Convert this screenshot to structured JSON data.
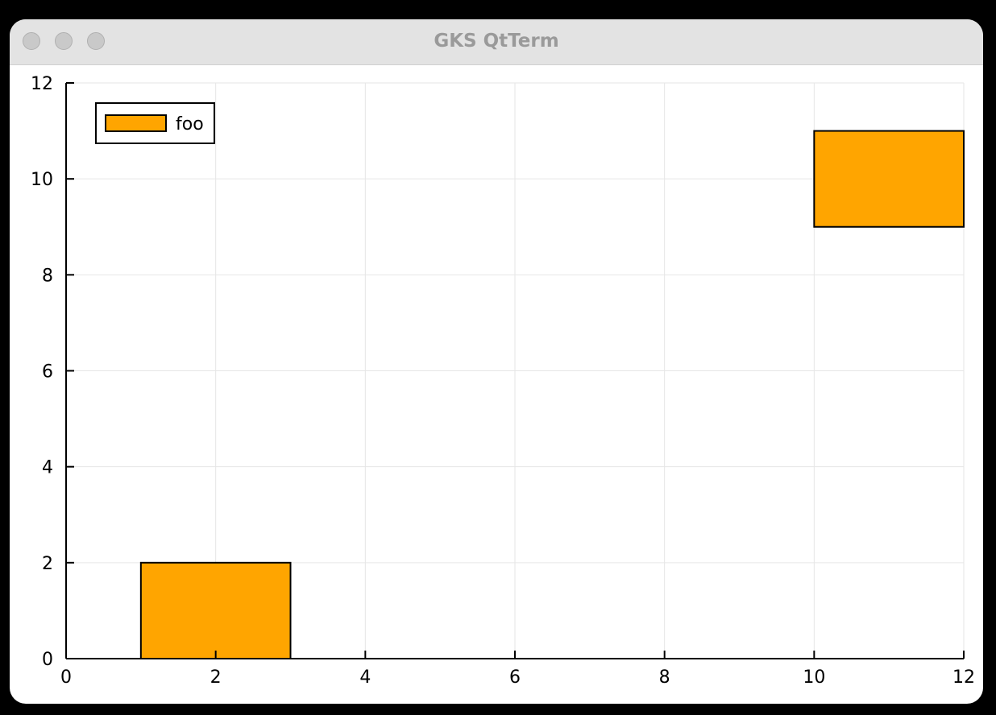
{
  "window": {
    "title": "GKS QtTerm"
  },
  "chart_data": {
    "type": "bar",
    "series": [
      {
        "name": "foo",
        "color": "#FFA500",
        "rects": [
          {
            "x0": 1,
            "x1": 3,
            "y0": 0,
            "y1": 2
          },
          {
            "x0": 10,
            "x1": 12,
            "y0": 9,
            "y1": 11
          }
        ]
      }
    ],
    "xlim": [
      0,
      12
    ],
    "ylim": [
      0,
      12
    ],
    "xticks": [
      0,
      2,
      4,
      6,
      8,
      10,
      12
    ],
    "yticks": [
      0,
      2,
      4,
      6,
      8,
      10,
      12
    ],
    "grid": true,
    "legend": "top-left"
  }
}
